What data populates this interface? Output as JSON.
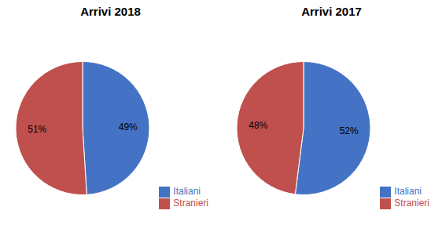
{
  "chart_data": [
    {
      "type": "pie",
      "title": "Arrivi 2018",
      "categories": [
        "Italiani",
        "Stranieri"
      ],
      "values": [
        49,
        51
      ],
      "value_labels": [
        "49%",
        "51%"
      ],
      "colors": [
        "#4472C4",
        "#C0504D"
      ],
      "data_labels": true,
      "legend": "lower right"
    },
    {
      "type": "pie",
      "title": "Arrivi 2017",
      "categories": [
        "Italiani",
        "Stranieri"
      ],
      "values": [
        52,
        48
      ],
      "value_labels": [
        "52%",
        "48%"
      ],
      "colors": [
        "#4472C4",
        "#C0504D"
      ],
      "data_labels": true,
      "legend": "lower right"
    }
  ]
}
